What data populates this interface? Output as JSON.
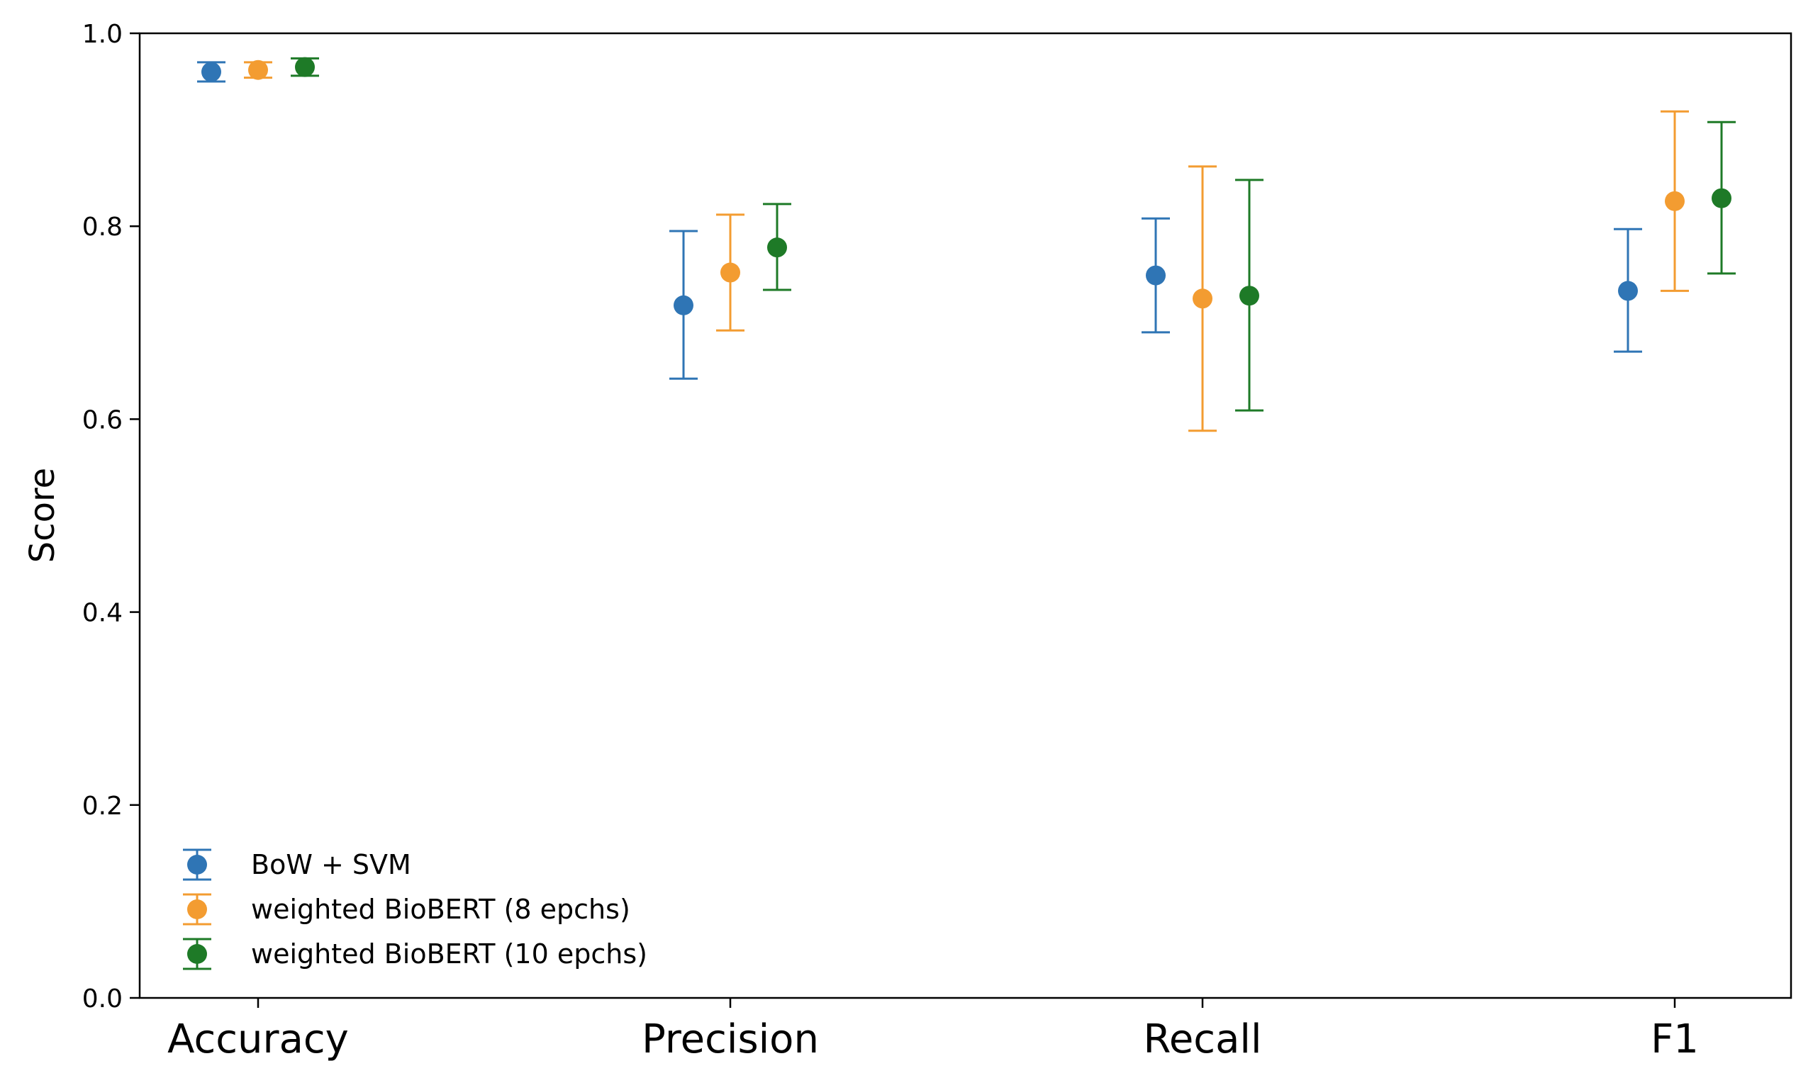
{
  "chart_data": {
    "type": "scatter",
    "title": "",
    "xlabel": "",
    "ylabel": "Score",
    "ylim": [
      0,
      1
    ],
    "yticks": [
      "0.0",
      "0.2",
      "0.4",
      "0.6",
      "0.8",
      "1.0"
    ],
    "categories": [
      "Accuracy",
      "Precision",
      "Recall",
      "F1"
    ],
    "grid": false,
    "legend_position": "lower-left",
    "series": [
      {
        "name": "BoW + SVM",
        "color": "#2f75b5",
        "values": [
          0.96,
          0.718,
          0.749,
          0.733
        ],
        "err_low": [
          0.95,
          0.642,
          0.69,
          0.67
        ],
        "err_high": [
          0.97,
          0.795,
          0.808,
          0.797
        ]
      },
      {
        "name": "weighted BioBERT (8 epchs)",
        "color": "#f39c31",
        "values": [
          0.962,
          0.752,
          0.725,
          0.826
        ],
        "err_low": [
          0.954,
          0.692,
          0.588,
          0.733
        ],
        "err_high": [
          0.97,
          0.812,
          0.862,
          0.919
        ]
      },
      {
        "name": "weighted BioBERT (10 epchs)",
        "color": "#1e7a27",
        "values": [
          0.965,
          0.778,
          0.728,
          0.829
        ],
        "err_low": [
          0.956,
          0.734,
          0.609,
          0.751
        ],
        "err_high": [
          0.974,
          0.823,
          0.848,
          0.908
        ]
      }
    ]
  }
}
